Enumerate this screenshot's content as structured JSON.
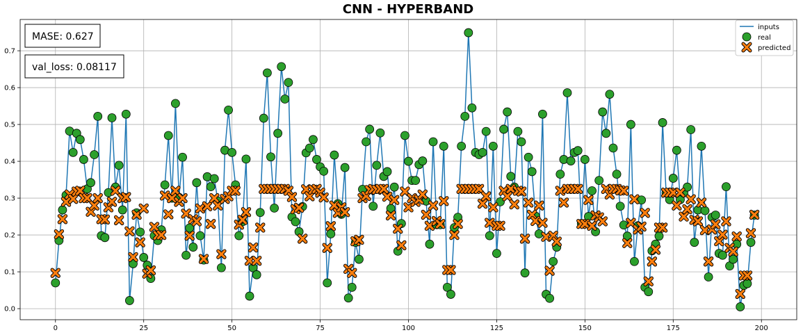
{
  "chart_data": {
    "type": "line",
    "title": "CNN - HYPERBAND",
    "xlabel": "",
    "ylabel": "",
    "xlim": [
      -10,
      210
    ],
    "ylim": [
      -0.03,
      0.785
    ],
    "xticks": [
      0,
      25,
      50,
      75,
      100,
      125,
      150,
      175,
      200
    ],
    "yticks": [
      0.0,
      0.1,
      0.2,
      0.3,
      0.4,
      0.5,
      0.6,
      0.7
    ],
    "grid": true,
    "legend_position": "top-right",
    "annotations": [
      {
        "id": "mase",
        "text": "MASE: 0.627"
      },
      {
        "id": "val_loss",
        "text": "val_loss: 0.08117"
      }
    ],
    "x_start": 0,
    "series": [
      {
        "name": "inputs",
        "style": "line",
        "color": "#1f77b4",
        "values": []
      },
      {
        "name": "real",
        "style": "circle",
        "color": "#2ca02c",
        "values": [
          0.07,
          0.185,
          0.268,
          0.308,
          0.482,
          0.424,
          0.476,
          0.459,
          0.405,
          0.325,
          0.342,
          0.418,
          0.522,
          0.198,
          0.193,
          0.315,
          0.518,
          0.33,
          0.389,
          0.268,
          0.528,
          0.022,
          0.122,
          0.26,
          0.208,
          0.139,
          0.118,
          0.082,
          0.198,
          0.185,
          0.214,
          0.336,
          0.47,
          0.3,
          0.557,
          0.302,
          0.411,
          0.145,
          0.219,
          0.167,
          0.342,
          0.198,
          0.132,
          0.358,
          0.331,
          0.353,
          0.292,
          0.111,
          0.43,
          0.539,
          0.424,
          0.336,
          0.198,
          0.236,
          0.406,
          0.034,
          0.111,
          0.092,
          0.261,
          0.517,
          0.64,
          0.412,
          0.273,
          0.476,
          0.657,
          0.569,
          0.614,
          0.249,
          0.236,
          0.209,
          0.277,
          0.423,
          0.436,
          0.459,
          0.405,
          0.385,
          0.373,
          0.07,
          0.203,
          0.417,
          0.285,
          0.256,
          0.383,
          0.029,
          0.058,
          0.18,
          0.134,
          0.324,
          0.453,
          0.487,
          0.278,
          0.389,
          0.477,
          0.359,
          0.372,
          0.272,
          0.33,
          0.156,
          0.231,
          0.47,
          0.4,
          0.348,
          0.348,
          0.391,
          0.401,
          0.292,
          0.175,
          0.453,
          0.228,
          0.228,
          0.441,
          0.058,
          0.039,
          0.22,
          0.248,
          0.441,
          0.522,
          0.749,
          0.545,
          0.424,
          0.418,
          0.424,
          0.481,
          0.198,
          0.441,
          0.15,
          0.29,
          0.487,
          0.534,
          0.359,
          0.33,
          0.481,
          0.453,
          0.097,
          0.411,
          0.372,
          0.251,
          0.203,
          0.528,
          0.039,
          0.028,
          0.128,
          0.167,
          0.365,
          0.405,
          0.586,
          0.401,
          0.424,
          0.429,
          0.231,
          0.405,
          0.25,
          0.32,
          0.209,
          0.348,
          0.534,
          0.476,
          0.582,
          0.436,
          0.365,
          0.278,
          0.227,
          0.197,
          0.5,
          0.128,
          0.225,
          0.295,
          0.058,
          0.046,
          0.157,
          0.175,
          0.197,
          0.505,
          0.314,
          0.296,
          0.354,
          0.43,
          0.296,
          0.314,
          0.33,
          0.486,
          0.18,
          0.268,
          0.441,
          0.266,
          0.086,
          0.248,
          0.254,
          0.15,
          0.145,
          0.331,
          0.116,
          0.134,
          0.175,
          0.005,
          0.063,
          0.068,
          0.18,
          0.254
        ]
      },
      {
        "name": "predicted",
        "style": "x-marker",
        "color": "#ff7f0e",
        "values": [
          0.097,
          0.202,
          0.243,
          0.29,
          0.31,
          0.298,
          0.318,
          0.32,
          0.3,
          0.3,
          0.263,
          0.28,
          0.3,
          0.243,
          0.242,
          0.275,
          0.29,
          0.32,
          0.24,
          0.3,
          0.303,
          0.21,
          0.14,
          0.255,
          0.18,
          0.272,
          0.095,
          0.104,
          0.222,
          0.199,
          0.2,
          0.307,
          0.256,
          0.3,
          0.32,
          0.29,
          0.3,
          0.258,
          0.198,
          0.243,
          0.237,
          0.272,
          0.135,
          0.278,
          0.23,
          0.3,
          0.28,
          0.148,
          0.298,
          0.305,
          0.32,
          0.32,
          0.228,
          0.241,
          0.262,
          0.13,
          0.166,
          0.13,
          0.22,
          0.325,
          0.325,
          0.325,
          0.325,
          0.325,
          0.325,
          0.325,
          0.32,
          0.303,
          0.27,
          0.274,
          0.19,
          0.324,
          0.305,
          0.323,
          0.325,
          0.315,
          0.302,
          0.165,
          0.224,
          0.28,
          0.26,
          0.275,
          0.262,
          0.108,
          0.097,
          0.183,
          0.187,
          0.3,
          0.306,
          0.322,
          0.325,
          0.323,
          0.325,
          0.325,
          0.304,
          0.253,
          0.295,
          0.217,
          0.172,
          0.318,
          0.275,
          0.3,
          0.29,
          0.296,
          0.31,
          0.255,
          0.225,
          0.28,
          0.238,
          0.23,
          0.292,
          0.105,
          0.105,
          0.2,
          0.23,
          0.325,
          0.325,
          0.325,
          0.325,
          0.325,
          0.325,
          0.285,
          0.305,
          0.233,
          0.275,
          0.225,
          0.225,
          0.32,
          0.305,
          0.325,
          0.283,
          0.32,
          0.318,
          0.19,
          0.288,
          0.255,
          0.238,
          0.28,
          0.233,
          0.195,
          0.103,
          0.198,
          0.182,
          0.32,
          0.288,
          0.325,
          0.325,
          0.325,
          0.325,
          0.23,
          0.23,
          0.295,
          0.225,
          0.253,
          0.248,
          0.237,
          0.325,
          0.31,
          0.325,
          0.325,
          0.321,
          0.32,
          0.178,
          0.233,
          0.297,
          0.215,
          0.223,
          0.26,
          0.074,
          0.128,
          0.16,
          0.22,
          0.22,
          0.315,
          0.315,
          0.315,
          0.28,
          0.315,
          0.25,
          0.27,
          0.297,
          0.241,
          0.237,
          0.288,
          0.213,
          0.128,
          0.215,
          0.229,
          0.183,
          0.201,
          0.237,
          0.165,
          0.155,
          0.196,
          0.04,
          0.09,
          0.09,
          0.205,
          0.255
        ]
      }
    ]
  }
}
